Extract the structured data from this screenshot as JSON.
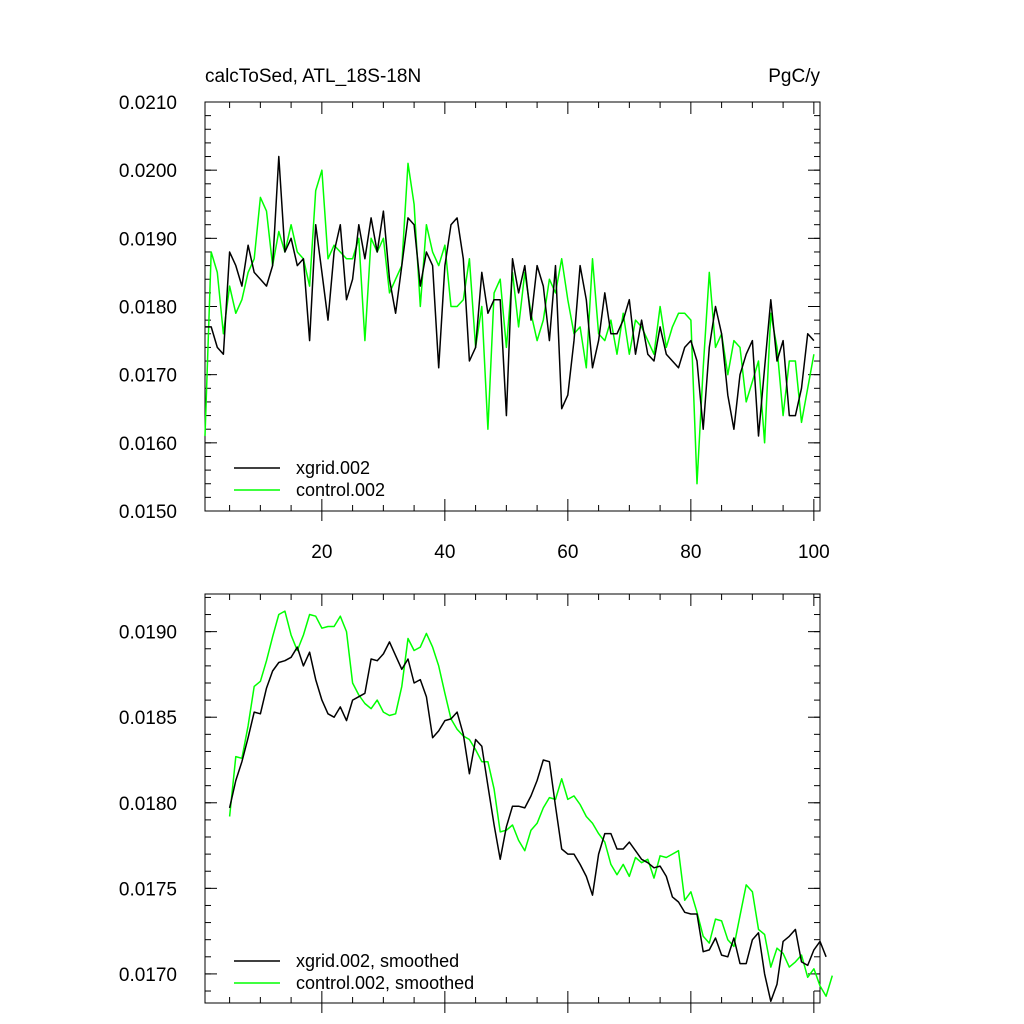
{
  "chart_data": [
    {
      "type": "line",
      "title": "calcToSed, ATL_18S-18N",
      "units": "PgC/y",
      "xlabel": "",
      "ylabel": "",
      "xlim": [
        1,
        101
      ],
      "ylim": [
        0.015,
        0.021
      ],
      "x_ticks": [
        20,
        40,
        60,
        80,
        100
      ],
      "y_ticks": [
        "0.0150",
        "0.0160",
        "0.0170",
        "0.0180",
        "0.0190",
        "0.0200",
        "0.0210"
      ],
      "legend_position": "bottom-left",
      "series": [
        {
          "name": "xgrid.002",
          "color": "#000000",
          "values": [
            0.0177,
            0.0177,
            0.0174,
            0.0173,
            0.0188,
            0.0186,
            0.0183,
            0.0189,
            0.0185,
            0.0184,
            0.0183,
            0.0186,
            0.0202,
            0.0188,
            0.019,
            0.0186,
            0.0187,
            0.0175,
            0.0192,
            0.0185,
            0.0178,
            0.0188,
            0.0192,
            0.0181,
            0.0184,
            0.0192,
            0.0187,
            0.0193,
            0.0188,
            0.0194,
            0.0184,
            0.0179,
            0.0186,
            0.0193,
            0.0192,
            0.0183,
            0.0188,
            0.0186,
            0.0171,
            0.0186,
            0.0192,
            0.0193,
            0.0187,
            0.0172,
            0.0174,
            0.0185,
            0.0179,
            0.0181,
            0.0181,
            0.0164,
            0.0187,
            0.0182,
            0.0186,
            0.0178,
            0.0186,
            0.0183,
            0.0175,
            0.0186,
            0.0165,
            0.0167,
            0.0175,
            0.0186,
            0.0181,
            0.0171,
            0.0175,
            0.0182,
            0.0176,
            0.0176,
            0.0178,
            0.0181,
            0.0173,
            0.0178,
            0.0173,
            0.0172,
            0.0177,
            0.0173,
            0.0172,
            0.0171,
            0.0174,
            0.0175,
            0.0172,
            0.0162,
            0.0174,
            0.018,
            0.0176,
            0.0167,
            0.0162,
            0.017,
            0.0173,
            0.0175,
            0.0161,
            0.0171,
            0.0181,
            0.0172,
            0.0175,
            0.0164,
            0.0164,
            0.0168,
            0.0176,
            0.0175
          ]
        },
        {
          "name": "control.002",
          "color": "#00ff00",
          "values": [
            0.0161,
            0.0188,
            0.0185,
            0.0176,
            0.0183,
            0.0179,
            0.0181,
            0.0185,
            0.0187,
            0.0196,
            0.0194,
            0.0186,
            0.0191,
            0.0188,
            0.0192,
            0.0188,
            0.0187,
            0.0183,
            0.0197,
            0.02,
            0.0187,
            0.0189,
            0.0188,
            0.0187,
            0.0187,
            0.019,
            0.0175,
            0.019,
            0.0188,
            0.019,
            0.0182,
            0.0184,
            0.0186,
            0.0201,
            0.0195,
            0.018,
            0.0192,
            0.0188,
            0.0186,
            0.0189,
            0.018,
            0.018,
            0.0181,
            0.0187,
            0.0174,
            0.018,
            0.0162,
            0.0182,
            0.0184,
            0.0174,
            0.0185,
            0.0177,
            0.0185,
            0.0179,
            0.0175,
            0.0178,
            0.0184,
            0.0182,
            0.0187,
            0.0181,
            0.0176,
            0.0177,
            0.0171,
            0.0187,
            0.0176,
            0.0175,
            0.0178,
            0.0173,
            0.0179,
            0.0173,
            0.0178,
            0.0177,
            0.0175,
            0.0173,
            0.018,
            0.0174,
            0.0177,
            0.0179,
            0.0179,
            0.0178,
            0.0154,
            0.0171,
            0.0185,
            0.0174,
            0.0176,
            0.017,
            0.0175,
            0.0174,
            0.0166,
            0.0169,
            0.0172,
            0.016,
            0.0179,
            0.0174,
            0.0164,
            0.0172,
            0.0172,
            0.0163,
            0.0168,
            0.0173
          ]
        }
      ]
    },
    {
      "type": "line",
      "title": "",
      "xlabel": "",
      "ylabel": "",
      "xlim": [
        1,
        101
      ],
      "ylim": [
        0.01683,
        0.01922
      ],
      "x_ticks": [
        20,
        40,
        60,
        80,
        100
      ],
      "y_ticks": [
        "0.0170",
        "0.0175",
        "0.0180",
        "0.0185",
        "0.0190"
      ],
      "legend_position": "bottom-left",
      "series": [
        {
          "name": "xgrid.002, smoothed",
          "color": "#000000",
          "x_start": 5,
          "values": [
            0.01797,
            0.01813,
            0.01824,
            0.01838,
            0.01853,
            0.01852,
            0.01867,
            0.01877,
            0.01882,
            0.01883,
            0.01885,
            0.01891,
            0.0188,
            0.01888,
            0.01872,
            0.0186,
            0.01852,
            0.0185,
            0.01856,
            0.01848,
            0.0186,
            0.01862,
            0.01864,
            0.01884,
            0.01883,
            0.01887,
            0.01894,
            0.01886,
            0.01878,
            0.01884,
            0.0187,
            0.01872,
            0.01862,
            0.01838,
            0.01842,
            0.01848,
            0.01849,
            0.01853,
            0.0184,
            0.01817,
            0.01837,
            0.01833,
            0.0181,
            0.01787,
            0.01767,
            0.01786,
            0.01798,
            0.01798,
            0.01797,
            0.01804,
            0.01813,
            0.01825,
            0.01824,
            0.01798,
            0.01773,
            0.0177,
            0.0177,
            0.01764,
            0.01757,
            0.01746,
            0.0177,
            0.01782,
            0.01782,
            0.01773,
            0.01773,
            0.01777,
            0.01772,
            0.01767,
            0.01765,
            0.01762,
            0.01763,
            0.01757,
            0.01745,
            0.01742,
            0.01736,
            0.01735,
            0.01735,
            0.01713,
            0.01714,
            0.01721,
            0.01711,
            0.0171,
            0.01721,
            0.01706,
            0.01706,
            0.0172,
            0.01724,
            0.017,
            0.01684,
            0.01694,
            0.01719,
            0.01722,
            0.01726,
            0.01707,
            0.01705,
            0.01714,
            0.01719,
            0.0171
          ]
        },
        {
          "name": "control.002, smoothed",
          "color": "#00ff00",
          "x_start": 5,
          "values": [
            0.01792,
            0.01827,
            0.01826,
            0.01845,
            0.01868,
            0.01871,
            0.01883,
            0.01897,
            0.0191,
            0.01912,
            0.01898,
            0.01889,
            0.01898,
            0.0191,
            0.01909,
            0.01902,
            0.01903,
            0.01903,
            0.01909,
            0.019,
            0.0187,
            0.01863,
            0.01858,
            0.01855,
            0.0186,
            0.01853,
            0.01851,
            0.01852,
            0.01868,
            0.01896,
            0.01889,
            0.01891,
            0.01899,
            0.01891,
            0.0188,
            0.01864,
            0.01849,
            0.01843,
            0.01839,
            0.01837,
            0.01831,
            0.01824,
            0.01824,
            0.01808,
            0.01783,
            0.01784,
            0.01787,
            0.01778,
            0.01772,
            0.01784,
            0.01788,
            0.01797,
            0.01803,
            0.01802,
            0.01814,
            0.01802,
            0.01804,
            0.01799,
            0.01792,
            0.01788,
            0.01782,
            0.01777,
            0.01764,
            0.01758,
            0.01764,
            0.01757,
            0.01768,
            0.01765,
            0.01767,
            0.01756,
            0.01769,
            0.01768,
            0.0177,
            0.01772,
            0.01743,
            0.01748,
            0.01736,
            0.01722,
            0.01718,
            0.01732,
            0.01731,
            0.0172,
            0.01716,
            0.01734,
            0.01752,
            0.01748,
            0.01726,
            0.01723,
            0.01704,
            0.01715,
            0.01712,
            0.01704,
            0.01707,
            0.01711,
            0.01698,
            0.01703,
            0.01693,
            0.01687,
            0.01699
          ]
        }
      ]
    }
  ]
}
